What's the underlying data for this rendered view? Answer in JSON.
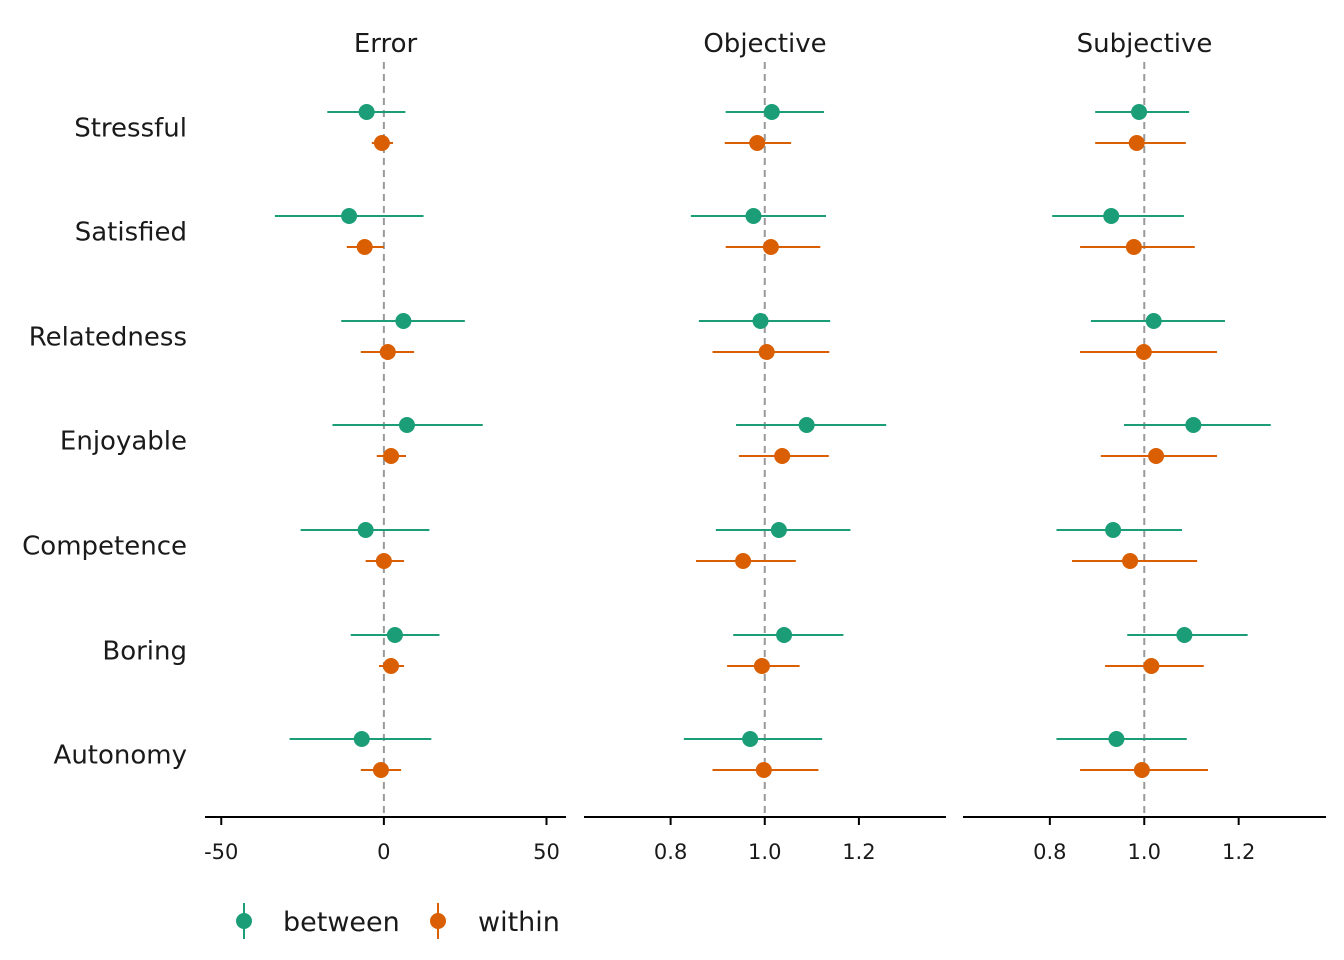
{
  "chart_data": {
    "type": "scatter",
    "variant": "forest-plot-faceted",
    "rows": [
      "Stressful",
      "Satisfied",
      "Relatedness",
      "Enjoyable",
      "Competence",
      "Boring",
      "Autonomy"
    ],
    "series_colors": {
      "between": "#1b9e77",
      "within": "#d95f02"
    },
    "reference_line_color": "#999999",
    "legend": {
      "placement": "bottom-left",
      "entries": [
        "between",
        "within"
      ]
    },
    "grid": false,
    "panels": [
      {
        "title": "Error",
        "xlim": [
          -55,
          56
        ],
        "ref": 0,
        "ticks": [
          {
            "v": -50,
            "label": "-50"
          },
          {
            "v": 0,
            "label": "0"
          },
          {
            "v": 50,
            "label": "50"
          }
        ],
        "points": {
          "between": [
            {
              "est": -5.3,
              "lo": -17.4,
              "hi": 6.6
            },
            {
              "est": -10.7,
              "lo": -33.5,
              "hi": 12.2
            },
            {
              "est": 6.0,
              "lo": -13.1,
              "hi": 24.9
            },
            {
              "est": 7.1,
              "lo": -15.8,
              "hi": 30.4
            },
            {
              "est": -5.6,
              "lo": -25.6,
              "hi": 14.0
            },
            {
              "est": 3.4,
              "lo": -10.2,
              "hi": 17.1
            },
            {
              "est": -6.8,
              "lo": -29.0,
              "hi": 14.6
            }
          ],
          "within": [
            {
              "est": -0.6,
              "lo": -3.7,
              "hi": 2.8
            },
            {
              "est": -5.9,
              "lo": -11.4,
              "hi": 0.0
            },
            {
              "est": 1.2,
              "lo": -7.1,
              "hi": 9.3
            },
            {
              "est": 2.2,
              "lo": -2.2,
              "hi": 6.8
            },
            {
              "est": 0.0,
              "lo": -5.6,
              "hi": 6.2
            },
            {
              "est": 2.2,
              "lo": -1.5,
              "hi": 6.2
            },
            {
              "est": -0.9,
              "lo": -7.1,
              "hi": 5.3
            }
          ]
        }
      },
      {
        "title": "Objective",
        "xlim": [
          0.616,
          1.385
        ],
        "ref": 1.0,
        "ticks": [
          {
            "v": 0.8,
            "label": "0.8"
          },
          {
            "v": 1.0,
            "label": "1.0"
          },
          {
            "v": 1.2,
            "label": "1.2"
          }
        ],
        "points": {
          "between": [
            {
              "est": 1.015,
              "lo": 0.917,
              "hi": 1.126
            },
            {
              "est": 0.976,
              "lo": 0.843,
              "hi": 1.13
            },
            {
              "est": 0.991,
              "lo": 0.86,
              "hi": 1.139
            },
            {
              "est": 1.089,
              "lo": 0.939,
              "hi": 1.258
            },
            {
              "est": 1.03,
              "lo": 0.896,
              "hi": 1.182
            },
            {
              "est": 1.041,
              "lo": 0.933,
              "hi": 1.167
            },
            {
              "est": 0.969,
              "lo": 0.828,
              "hi": 1.122
            }
          ],
          "within": [
            {
              "est": 0.984,
              "lo": 0.915,
              "hi": 1.056
            },
            {
              "est": 1.013,
              "lo": 0.917,
              "hi": 1.118
            },
            {
              "est": 1.004,
              "lo": 0.889,
              "hi": 1.137
            },
            {
              "est": 1.037,
              "lo": 0.945,
              "hi": 1.136
            },
            {
              "est": 0.954,
              "lo": 0.854,
              "hi": 1.066
            },
            {
              "est": 0.994,
              "lo": 0.92,
              "hi": 1.074
            },
            {
              "est": 0.998,
              "lo": 0.889,
              "hi": 1.114
            }
          ]
        }
      },
      {
        "title": "Subjective",
        "xlim": [
          0.616,
          1.385
        ],
        "ref": 1.0,
        "ticks": [
          {
            "v": 0.8,
            "label": "0.8"
          },
          {
            "v": 1.0,
            "label": "1.0"
          },
          {
            "v": 1.2,
            "label": "1.2"
          }
        ],
        "points": {
          "between": [
            {
              "est": 0.989,
              "lo": 0.896,
              "hi": 1.095
            },
            {
              "est": 0.93,
              "lo": 0.805,
              "hi": 1.084
            },
            {
              "est": 1.02,
              "lo": 0.887,
              "hi": 1.171
            },
            {
              "est": 1.104,
              "lo": 0.957,
              "hi": 1.268
            },
            {
              "est": 0.934,
              "lo": 0.814,
              "hi": 1.08
            },
            {
              "est": 1.085,
              "lo": 0.964,
              "hi": 1.219
            },
            {
              "est": 0.941,
              "lo": 0.814,
              "hi": 1.09
            }
          ],
          "within": [
            {
              "est": 0.984,
              "lo": 0.896,
              "hi": 1.088
            },
            {
              "est": 0.978,
              "lo": 0.864,
              "hi": 1.107
            },
            {
              "est": 0.999,
              "lo": 0.864,
              "hi": 1.154
            },
            {
              "est": 1.025,
              "lo": 0.908,
              "hi": 1.154
            },
            {
              "est": 0.97,
              "lo": 0.847,
              "hi": 1.112
            },
            {
              "est": 1.015,
              "lo": 0.917,
              "hi": 1.126
            },
            {
              "est": 0.995,
              "lo": 0.864,
              "hi": 1.135
            }
          ]
        }
      }
    ]
  }
}
